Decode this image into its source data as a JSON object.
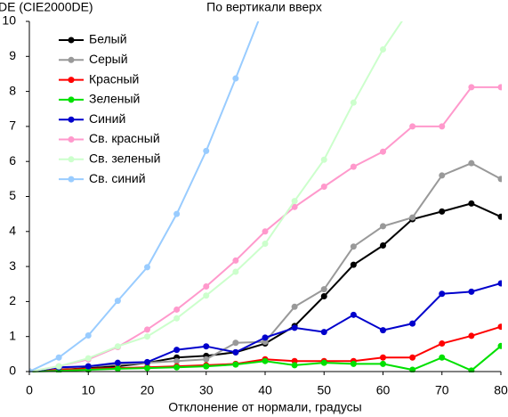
{
  "chart_data": {
    "type": "line",
    "title": "По вертикали вверх",
    "ylabel": "DE (CIE2000DE)",
    "xlabel": "Отклонение от нормали, градусы",
    "x": [
      0,
      5,
      10,
      15,
      20,
      25,
      30,
      35,
      40,
      45,
      50,
      55,
      60,
      65,
      70,
      75,
      80
    ],
    "xlim": [
      0,
      80
    ],
    "xticks": [
      0,
      10,
      20,
      30,
      40,
      50,
      60,
      70,
      80
    ],
    "ylim": [
      0,
      10
    ],
    "yticks": [
      0,
      1,
      2,
      3,
      4,
      5,
      6,
      7,
      8,
      9,
      10
    ],
    "grid": false,
    "legend": "upper left",
    "series": [
      {
        "name": "Белый",
        "color": "#000000",
        "values": [
          0,
          0.05,
          0.1,
          0.15,
          0.25,
          0.4,
          0.45,
          0.55,
          0.8,
          1.3,
          2.15,
          3.05,
          3.6,
          4.35,
          4.57,
          4.8,
          4.42
        ]
      },
      {
        "name": "Серый",
        "color": "#999999",
        "values": [
          0,
          0.1,
          0.15,
          0.2,
          0.25,
          0.3,
          0.35,
          0.82,
          0.85,
          1.85,
          2.35,
          3.57,
          4.15,
          4.4,
          5.6,
          5.95,
          5.5
        ]
      },
      {
        "name": "Красный",
        "color": "#ff0000",
        "values": [
          0,
          0.05,
          0.08,
          0.1,
          0.12,
          0.15,
          0.18,
          0.22,
          0.35,
          0.3,
          0.3,
          0.3,
          0.4,
          0.4,
          0.8,
          1.02,
          1.28
        ]
      },
      {
        "name": "Зеленый",
        "color": "#00e000",
        "values": [
          0,
          0.02,
          0.05,
          0.08,
          0.1,
          0.12,
          0.15,
          0.2,
          0.3,
          0.18,
          0.25,
          0.22,
          0.22,
          0.05,
          0.4,
          0.03,
          0.73
        ]
      },
      {
        "name": "Синий",
        "color": "#0000cc",
        "values": [
          0,
          0.12,
          0.15,
          0.25,
          0.27,
          0.62,
          0.72,
          0.55,
          0.97,
          1.25,
          1.13,
          1.62,
          1.18,
          1.37,
          2.22,
          2.28,
          2.52
        ]
      },
      {
        "name": "Св. красный",
        "color": "#ff99cc",
        "values": [
          0,
          0.15,
          0.35,
          0.7,
          1.2,
          1.77,
          2.43,
          3.17,
          4.0,
          4.7,
          5.28,
          5.85,
          6.28,
          7.0,
          7.0,
          8.12,
          8.12
        ]
      },
      {
        "name": "Св. зеленый",
        "color": "#ccffcc",
        "values": [
          0,
          0.15,
          0.38,
          0.72,
          1.0,
          1.52,
          2.17,
          2.85,
          3.65,
          4.87,
          6.05,
          7.68,
          9.2,
          10.45,
          null,
          null,
          null
        ]
      },
      {
        "name": "Св. синий",
        "color": "#99ccff",
        "values": [
          0,
          0.4,
          1.03,
          2.02,
          2.98,
          4.5,
          6.3,
          8.37,
          10.5,
          null,
          null,
          null,
          null,
          null,
          null,
          null,
          null
        ]
      }
    ]
  }
}
